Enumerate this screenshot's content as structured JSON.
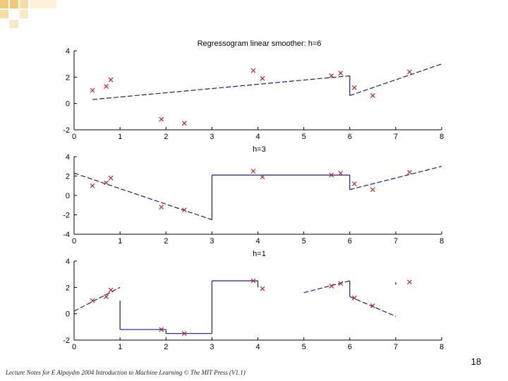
{
  "slide": {
    "number": "18",
    "footer": "Lecture Notes for E Alpaydın 2004 Introduction to Machine Learning © The MIT Press (V1.1)",
    "accent_color": "#f2c97a",
    "line_color": "#1a1a8c",
    "point_color": "#c0202a"
  },
  "chart_data": [
    {
      "type": "line",
      "title": "Regressogram linear smoother: h=6",
      "xlim": [
        0,
        8
      ],
      "ylim": [
        -2,
        4
      ],
      "xticks": [
        0,
        1,
        2,
        3,
        4,
        5,
        6,
        7,
        8
      ],
      "yticks": [
        -2,
        0,
        2,
        4
      ],
      "points": [
        [
          0.4,
          1.0
        ],
        [
          0.7,
          1.3
        ],
        [
          0.8,
          1.8
        ],
        [
          1.9,
          -1.2
        ],
        [
          2.4,
          -1.5
        ],
        [
          3.9,
          2.5
        ],
        [
          4.1,
          1.9
        ],
        [
          5.6,
          2.1
        ],
        [
          5.8,
          2.3
        ],
        [
          6.1,
          1.2
        ],
        [
          6.5,
          0.6
        ],
        [
          7.3,
          2.4
        ]
      ],
      "segments": [
        {
          "style": "dash",
          "x": [
            0.4,
            6.0
          ],
          "y": [
            0.3,
            2.1
          ]
        },
        {
          "style": "solid",
          "x": [
            6.0,
            6.0
          ],
          "y": [
            2.1,
            0.6
          ]
        },
        {
          "style": "dash",
          "x": [
            6.0,
            8.0
          ],
          "y": [
            0.6,
            3.0
          ]
        }
      ]
    },
    {
      "type": "line",
      "title": "h=3",
      "xlim": [
        0,
        8
      ],
      "ylim": [
        -4,
        4
      ],
      "xticks": [
        0,
        1,
        2,
        3,
        4,
        5,
        6,
        7,
        8
      ],
      "yticks": [
        -4,
        -2,
        0,
        2,
        4
      ],
      "points": [
        [
          0.4,
          1.0
        ],
        [
          0.7,
          1.3
        ],
        [
          0.8,
          1.8
        ],
        [
          1.9,
          -1.2
        ],
        [
          2.4,
          -1.5
        ],
        [
          3.9,
          2.5
        ],
        [
          4.1,
          1.9
        ],
        [
          5.6,
          2.1
        ],
        [
          5.8,
          2.3
        ],
        [
          6.1,
          1.2
        ],
        [
          6.5,
          0.6
        ],
        [
          7.3,
          2.4
        ]
      ],
      "segments": [
        {
          "style": "dash",
          "x": [
            0.0,
            3.0
          ],
          "y": [
            2.3,
            -2.5
          ]
        },
        {
          "style": "solid",
          "x": [
            3.0,
            3.0
          ],
          "y": [
            -2.5,
            2.1
          ]
        },
        {
          "style": "solid",
          "x": [
            3.0,
            6.0
          ],
          "y": [
            2.1,
            2.1
          ]
        },
        {
          "style": "solid",
          "x": [
            6.0,
            6.0
          ],
          "y": [
            2.1,
            0.6
          ]
        },
        {
          "style": "dash",
          "x": [
            6.0,
            8.0
          ],
          "y": [
            0.6,
            3.0
          ]
        }
      ]
    },
    {
      "type": "line",
      "title": "h=1",
      "xlim": [
        0,
        8
      ],
      "ylim": [
        -2,
        4
      ],
      "xticks": [
        0,
        1,
        2,
        3,
        4,
        5,
        6,
        7,
        8
      ],
      "yticks": [
        -2,
        0,
        2,
        4
      ],
      "points": [
        [
          0.4,
          1.0
        ],
        [
          0.7,
          1.3
        ],
        [
          0.8,
          1.8
        ],
        [
          1.9,
          -1.2
        ],
        [
          2.4,
          -1.5
        ],
        [
          3.9,
          2.5
        ],
        [
          4.1,
          1.9
        ],
        [
          5.6,
          2.1
        ],
        [
          5.8,
          2.3
        ],
        [
          6.1,
          1.2
        ],
        [
          6.5,
          0.6
        ],
        [
          7.3,
          2.4
        ]
      ],
      "segments": [
        {
          "style": "dash",
          "x": [
            0.0,
            1.0
          ],
          "y": [
            0.2,
            2.0
          ]
        },
        {
          "style": "solid",
          "x": [
            1.0,
            1.0
          ],
          "y": [
            1.0,
            -1.2
          ]
        },
        {
          "style": "solid",
          "x": [
            1.0,
            2.0
          ],
          "y": [
            -1.2,
            -1.2
          ]
        },
        {
          "style": "solid",
          "x": [
            2.0,
            2.0
          ],
          "y": [
            -1.2,
            -1.5
          ]
        },
        {
          "style": "solid",
          "x": [
            2.0,
            3.0
          ],
          "y": [
            -1.5,
            -1.5
          ]
        },
        {
          "style": "solid",
          "x": [
            3.0,
            3.0
          ],
          "y": [
            -1.5,
            2.5
          ]
        },
        {
          "style": "solid",
          "x": [
            3.0,
            4.0
          ],
          "y": [
            2.5,
            2.5
          ]
        },
        {
          "style": "solid",
          "x": [
            4.0,
            4.0
          ],
          "y": [
            2.5,
            2.0
          ]
        },
        {
          "style": "dash",
          "x": [
            5.0,
            6.0
          ],
          "y": [
            1.6,
            2.5
          ]
        },
        {
          "style": "solid",
          "x": [
            6.0,
            6.0
          ],
          "y": [
            2.5,
            1.3
          ]
        },
        {
          "style": "dash",
          "x": [
            6.0,
            7.0
          ],
          "y": [
            1.3,
            -0.2
          ]
        },
        {
          "style": "solid",
          "x": [
            7.0,
            7.0
          ],
          "y": [
            2.2,
            2.4
          ]
        }
      ]
    }
  ]
}
